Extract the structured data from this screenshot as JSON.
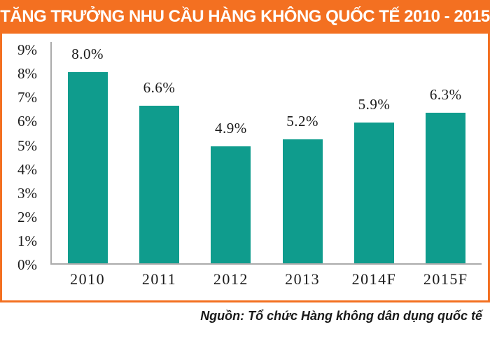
{
  "banner": {
    "title": "TĂNG TRƯỞNG NHU CẦU HÀNG KHÔNG QUỐC TẾ 2010 - 2015",
    "background_color": "#f37021",
    "text_color": "#ffffff"
  },
  "source_note": "Nguồn: Tổ chức Hàng không dân dụng quốc tế",
  "chart_data": {
    "type": "bar",
    "title": "TĂNG TRƯỞNG NHU CẦU HÀNG KHÔNG QUỐC TẾ 2010 - 2015",
    "categories": [
      "2010",
      "2011",
      "2012",
      "2013",
      "2014F",
      "2015F"
    ],
    "values": [
      8.0,
      6.6,
      4.9,
      5.2,
      5.9,
      6.3
    ],
    "data_labels": [
      "8.0%",
      "6.6%",
      "4.9%",
      "5.2%",
      "5.9%",
      "6.3%"
    ],
    "y_ticks": [
      "0%",
      "1%",
      "2%",
      "3%",
      "4%",
      "5%",
      "6%",
      "7%",
      "8%",
      "9%"
    ],
    "ylim": [
      0,
      9
    ],
    "xlabel": "",
    "ylabel": "",
    "grid": false,
    "legend": false,
    "bar_color": "#0f9c8d",
    "axis_color": "#ababab",
    "label_color": "#1a1a1a"
  }
}
